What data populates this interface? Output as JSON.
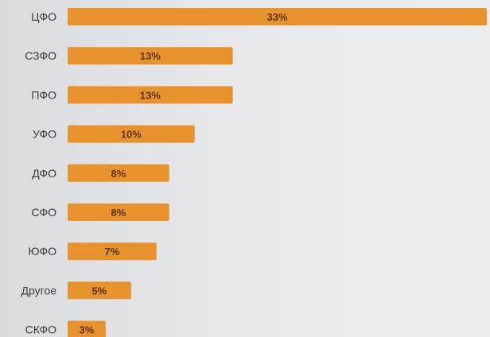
{
  "chart_data": {
    "type": "bar",
    "orientation": "horizontal",
    "title": "",
    "xlabel": "",
    "ylabel": "",
    "categories": [
      "ЦФО",
      "СЗФО",
      "ПФО",
      "УФО",
      "ДФО",
      "СФО",
      "ЮФО",
      "Другое",
      "СКФО"
    ],
    "values": [
      33,
      13,
      13,
      10,
      8,
      8,
      7,
      5,
      3
    ],
    "value_labels": [
      "33%",
      "13%",
      "13%",
      "10%",
      "8%",
      "8%",
      "7%",
      "5%",
      "3%"
    ],
    "unit": "%",
    "grid": false,
    "legend": "none",
    "colors": {
      "bar": "#e8922e",
      "value_label": "#5a3410",
      "category_label": "#3a3a3a"
    }
  }
}
